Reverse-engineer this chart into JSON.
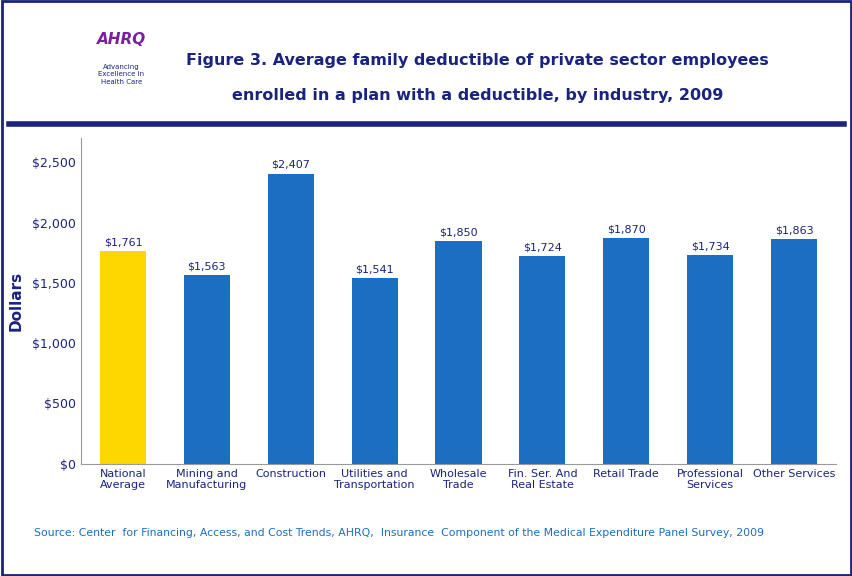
{
  "categories": [
    "National\nAverage",
    "Mining and\nManufacturing",
    "Construction",
    "Utilities and\nTransportation",
    "Wholesale\nTrade",
    "Fin. Ser. And\nReal Estate",
    "Retail Trade",
    "Professional\nServices",
    "Other Services"
  ],
  "values": [
    1761,
    1563,
    2407,
    1541,
    1850,
    1724,
    1870,
    1734,
    1863
  ],
  "bar_colors": [
    "#FFD700",
    "#1B6EC2",
    "#1B6EC2",
    "#1B6EC2",
    "#1B6EC2",
    "#1B6EC2",
    "#1B6EC2",
    "#1B6EC2",
    "#1B6EC2"
  ],
  "labels": [
    "$1,761",
    "$1,563",
    "$2,407",
    "$1,541",
    "$1,850",
    "$1,724",
    "$1,870",
    "$1,734",
    "$1,863"
  ],
  "title_line1": "Figure 3. Average family deductible of private sector employees",
  "title_line2": "enrolled in a plan with a deductible, by industry, 2009",
  "ylabel": "Dollars",
  "ylim": [
    0,
    2700
  ],
  "yticks": [
    0,
    500,
    1000,
    1500,
    2000,
    2500
  ],
  "ytick_labels": [
    "$0",
    "$500",
    "$1,000",
    "$1,500",
    "$2,000",
    "$2,500"
  ],
  "source_text": "Source: Center  for Financing, Access, and Cost Trends, AHRQ,  Insurance  Component of the Medical Expenditure Panel Survey, 2009",
  "figure_bg": "#FFFFFF",
  "chart_bg": "#FFFFFF",
  "title_color": "#1A237E",
  "axis_label_color": "#1A237E",
  "bar_label_color": "#1A237E",
  "tick_label_color": "#1A237E",
  "source_color": "#1B6EC2",
  "border_color": "#1A237E",
  "header_line_color": "#1A237E"
}
